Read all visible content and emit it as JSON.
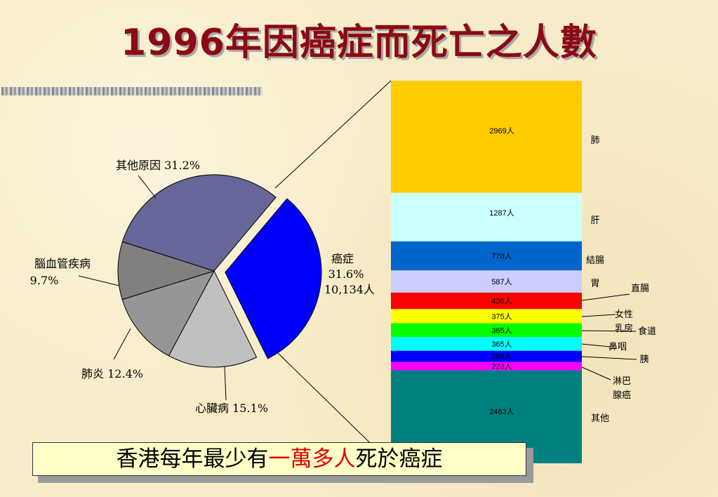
{
  "title": "1996年因癌症而死亡之人數",
  "banner": {
    "prefix": "香港每年最少有",
    "highlight": "一萬多人",
    "suffix": "死於癌症"
  },
  "chart_data": [
    {
      "type": "pie",
      "slices": [
        {
          "name": "癌症",
          "value": 31.6,
          "color": "#0000ff",
          "label_lines": [
            "癌症",
            "31.6%",
            "10,134人"
          ]
        },
        {
          "name": "心臟病",
          "value": 15.1,
          "color": "#c0c0c0",
          "label_lines": [
            "心臟病 15.1%"
          ]
        },
        {
          "name": "肺炎",
          "value": 12.4,
          "color": "#969696",
          "label_lines": [
            "肺炎 12.4%"
          ]
        },
        {
          "name": "腦血管疾病",
          "value": 9.7,
          "color": "#808080",
          "label_lines": [
            "腦血管疾病",
            "9.7%"
          ]
        },
        {
          "name": "其他原因",
          "value": 31.2,
          "color": "#666699",
          "label_lines": [
            "其他原因 31.2%"
          ]
        }
      ]
    },
    {
      "type": "bar",
      "stacked": true,
      "segments": [
        {
          "name": "肺",
          "value": 2969,
          "label": "2969人",
          "color": "#ffcc00"
        },
        {
          "name": "肝",
          "value": 1287,
          "label": "1287人",
          "color": "#ccffff"
        },
        {
          "name": "結腸",
          "value": 770,
          "label": "770人",
          "color": "#0066cc"
        },
        {
          "name": "胃",
          "value": 587,
          "label": "587人",
          "color": "#ccccff"
        },
        {
          "name": "直腸",
          "value": 436,
          "label": "436人",
          "color": "#ff0000"
        },
        {
          "name": "女性乳房",
          "value": 375,
          "label": "375人",
          "color": "#ffff00"
        },
        {
          "name": "食道",
          "value": 365,
          "label": "365人",
          "color": "#00ff00"
        },
        {
          "name": "鼻咽",
          "value": 365,
          "label": "365人",
          "color": "#00ffff"
        },
        {
          "name": "胰",
          "value": 294,
          "label": "294人",
          "color": "#0000ff"
        },
        {
          "name": "淋巴腺癌",
          "value": 223,
          "label": "223人",
          "color": "#ff00ff"
        },
        {
          "name": "其他",
          "value": 2463,
          "label": "2463人",
          "color": "#008080"
        }
      ],
      "category_labels": {
        "肺": "肺",
        "肝": "肝",
        "結腸": "結腸",
        "胃": "胃",
        "直腸": "直腸",
        "女性乳房": [
          "女性",
          "乳房"
        ],
        "食道": "食道",
        "鼻咽": "鼻咽",
        "胰": "胰",
        "淋巴腺癌": [
          "淋巴",
          "腺癌"
        ],
        "其他": "其他"
      }
    }
  ]
}
